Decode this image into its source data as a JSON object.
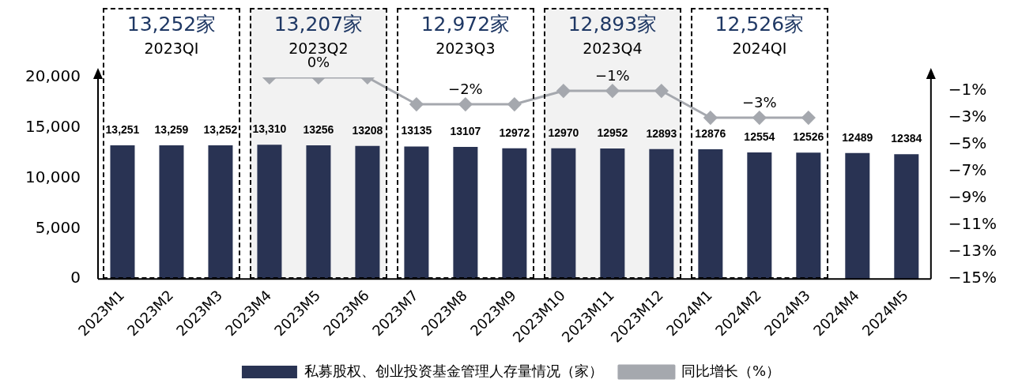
{
  "chart_data": {
    "type": "bar",
    "categories": [
      "2023M1",
      "2023M2",
      "2023M3",
      "2023M4",
      "2023M5",
      "2023M6",
      "2023M7",
      "2023M8",
      "2023M9",
      "2023M10",
      "2023M11",
      "2023M12",
      "2024M1",
      "2024M2",
      "2024M3",
      "2024M4",
      "2024M5"
    ],
    "series": [
      {
        "name": "私募股权、创业投资基金管理人存量情况（家）",
        "color": "#293353",
        "values": [
          13251,
          13259,
          13252,
          13310,
          13256,
          13208,
          13135,
          13107,
          12972,
          12970,
          12952,
          12893,
          12876,
          12554,
          12526,
          12489,
          12384
        ],
        "value_labels": [
          "13,251",
          "13,259",
          "13,252",
          "13,310",
          "13256",
          "13208",
          "13135",
          "13107",
          "12972",
          "12970",
          "12952",
          "12893",
          "12876",
          "12554",
          "12526",
          "12489",
          "12384"
        ]
      },
      {
        "name": "同比增长（%）",
        "type": "line",
        "axis": "y2",
        "color": "#a5a8ae",
        "marker": "diamond",
        "values": [
          null,
          null,
          null,
          0,
          0,
          0,
          -2,
          -2,
          -2,
          -1,
          -1,
          -1,
          -3,
          -3,
          -3,
          null,
          null
        ],
        "value_labels": [
          null,
          null,
          null,
          null,
          "0%",
          null,
          null,
          "−2%",
          null,
          null,
          "−1%",
          null,
          null,
          "−3%",
          null,
          null,
          null
        ]
      }
    ],
    "ylim": [
      0,
      20000
    ],
    "yticks": [
      {
        "value": 0,
        "label": "0"
      },
      {
        "value": 5000,
        "label": "5,000"
      },
      {
        "value": 10000,
        "label": "10,000"
      },
      {
        "value": 15000,
        "label": "15,000"
      },
      {
        "value": 20000,
        "label": "20,000"
      }
    ],
    "y2lim": [
      -15,
      0
    ],
    "y2ticks": [
      {
        "value": -1,
        "label": "−1%"
      },
      {
        "value": -3,
        "label": "−3%"
      },
      {
        "value": -5,
        "label": "−5%"
      },
      {
        "value": -7,
        "label": "−7%"
      },
      {
        "value": -9,
        "label": "−9%"
      },
      {
        "value": -11,
        "label": "−11%"
      },
      {
        "value": -13,
        "label": "−13%"
      },
      {
        "value": -15,
        "label": "−15%"
      }
    ],
    "bands": [
      {
        "axis": "x",
        "from": "2023M4",
        "to": "2023M6",
        "color": "#f2f2f2"
      },
      {
        "axis": "x",
        "from": "2023M10",
        "to": "2023M12",
        "color": "#f2f2f2"
      }
    ],
    "annotations": [
      "13,252家",
      "2023QI",
      "13,207家",
      "2023Q2",
      "12,972家",
      "2023Q3",
      "12,893家",
      "2023Q4",
      "12,526家",
      "2024QI"
    ],
    "grid": false,
    "legend": "bottom"
  }
}
